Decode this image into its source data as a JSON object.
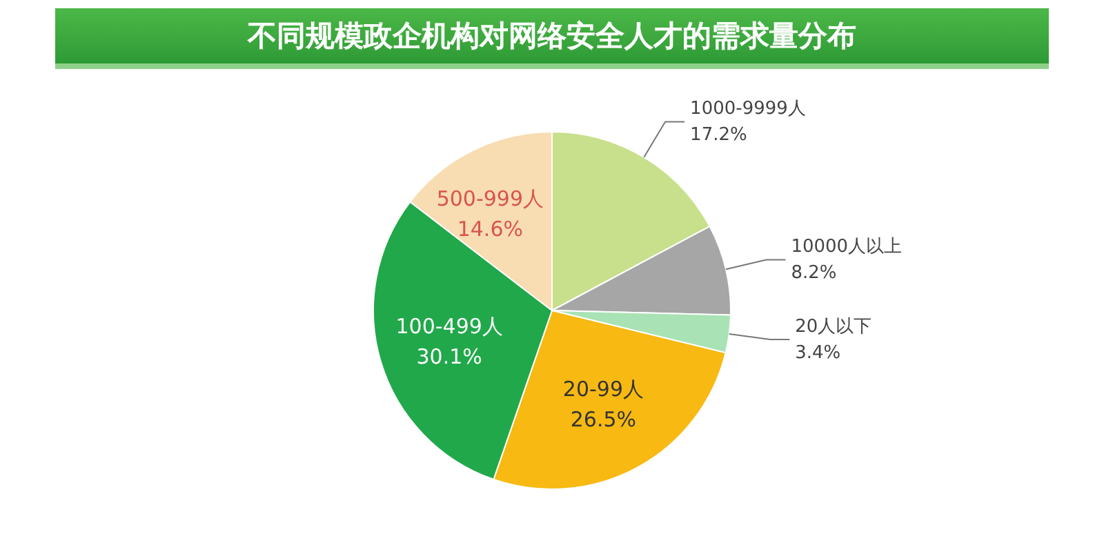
{
  "chart_data": {
    "type": "pie",
    "title": "不同规模政企机构对网络安全人才的需求量分布",
    "categories": [
      "1000-9999人",
      "10000人以上",
      "20人以下",
      "20-99人",
      "100-499人",
      "500-999人"
    ],
    "values": [
      17.2,
      8.2,
      3.4,
      26.5,
      30.1,
      14.6
    ],
    "colors": [
      "#c8df8c",
      "#a6a6a6",
      "#a9e2b4",
      "#f7b912",
      "#21a84a",
      "#f8dcb2"
    ],
    "value_labels": [
      "17.2%",
      "8.2%",
      "3.4%",
      "26.5%",
      "30.1%",
      "14.6%"
    ],
    "legend": false
  }
}
